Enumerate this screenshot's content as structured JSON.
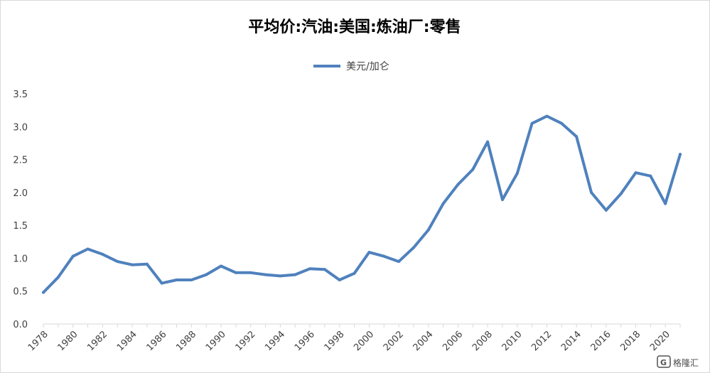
{
  "chart_data": {
    "type": "line",
    "title": "平均价:汽油:美国:炼油厂:零售",
    "xlabel": "",
    "ylabel": "",
    "ylim": [
      0,
      3.5
    ],
    "yticks": [
      "0.0",
      "0.5",
      "1.0",
      "1.5",
      "2.0",
      "2.5",
      "3.0",
      "3.5"
    ],
    "grid": false,
    "legend_position": "top-center",
    "x": [
      1978,
      1979,
      1980,
      1981,
      1982,
      1983,
      1984,
      1985,
      1986,
      1987,
      1988,
      1989,
      1990,
      1991,
      1992,
      1993,
      1994,
      1995,
      1996,
      1997,
      1998,
      1999,
      2000,
      2001,
      2002,
      2003,
      2004,
      2005,
      2006,
      2007,
      2008,
      2009,
      2010,
      2011,
      2012,
      2013,
      2014,
      2015,
      2016,
      2017,
      2018,
      2019,
      2020,
      2021
    ],
    "xtick_labels": [
      "1978",
      "1980",
      "1982",
      "1984",
      "1986",
      "1988",
      "1990",
      "1992",
      "1994",
      "1996",
      "1998",
      "2000",
      "2002",
      "2004",
      "2006",
      "2008",
      "2010",
      "2012",
      "2014",
      "2016",
      "2018",
      "2020"
    ],
    "series": [
      {
        "name": "美元/加仑",
        "color": "#4f81bd",
        "values": [
          0.48,
          0.71,
          1.03,
          1.14,
          1.06,
          0.95,
          0.9,
          0.91,
          0.62,
          0.67,
          0.67,
          0.75,
          0.88,
          0.78,
          0.78,
          0.75,
          0.73,
          0.75,
          0.84,
          0.83,
          0.67,
          0.77,
          1.09,
          1.03,
          0.95,
          1.16,
          1.43,
          1.83,
          2.12,
          2.35,
          2.77,
          1.89,
          2.29,
          3.05,
          3.16,
          3.05,
          2.85,
          2.0,
          1.73,
          1.98,
          2.3,
          2.25,
          1.83,
          2.58
        ]
      }
    ]
  },
  "watermark": {
    "text": "格隆汇",
    "icon": "logo-g-icon"
  }
}
